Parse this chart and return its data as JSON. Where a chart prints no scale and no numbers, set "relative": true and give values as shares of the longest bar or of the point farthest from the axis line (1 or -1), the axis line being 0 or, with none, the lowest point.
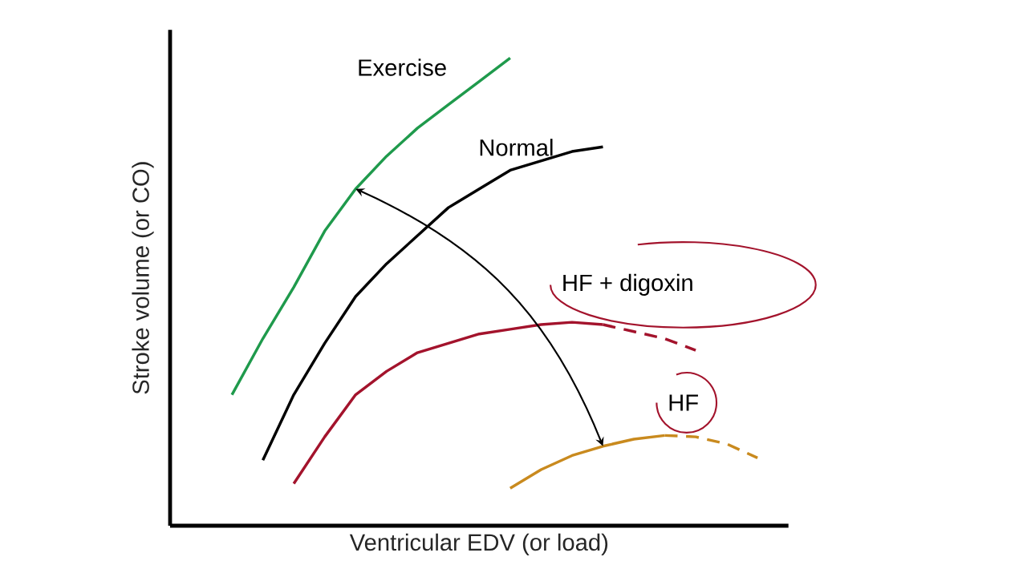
{
  "chart_data": {
    "type": "line",
    "relative": true,
    "xlabel": "Ventricular EDV (or load)",
    "ylabel": "Stroke volume (or CO)",
    "marker": "none",
    "categories": [
      null,
      null,
      null,
      null,
      null,
      null,
      null,
      null,
      null,
      null,
      null,
      null,
      null,
      null,
      null,
      null,
      null,
      null,
      null,
      null,
      null
    ],
    "series": [
      {
        "name": "Exercise",
        "color": "#1f9a4c",
        "values": [
          null,
          null,
          0.28,
          0.4,
          0.51,
          0.63,
          0.72,
          0.79,
          0.85,
          0.9,
          0.95,
          1.0,
          null,
          null,
          null,
          null,
          null,
          null,
          null,
          null,
          null
        ]
      },
      {
        "name": "Normal",
        "color": "#000000",
        "values": [
          null,
          null,
          null,
          0.14,
          0.28,
          0.39,
          0.49,
          0.56,
          0.62,
          0.68,
          0.72,
          0.76,
          0.78,
          0.8,
          0.81,
          null,
          null,
          null,
          null,
          null,
          null
        ]
      },
      {
        "name": "HF + digoxin",
        "color": "#a3132c",
        "line_style": "solid",
        "values": [
          null,
          null,
          null,
          null,
          0.09,
          0.19,
          0.28,
          0.33,
          0.37,
          0.39,
          0.41,
          0.42,
          0.43,
          0.435,
          0.43,
          null,
          null,
          null,
          null,
          null,
          null
        ]
      },
      {
        "color": "#a3132c",
        "line_style": "dashed",
        "values": [
          null,
          null,
          null,
          null,
          null,
          null,
          null,
          null,
          null,
          null,
          null,
          null,
          null,
          null,
          0.43,
          0.415,
          0.4,
          0.375,
          null,
          null,
          null
        ]
      },
      {
        "name": "HF",
        "color": "#c98a1e",
        "line_style": "solid",
        "values": [
          null,
          null,
          null,
          null,
          null,
          null,
          null,
          null,
          null,
          null,
          null,
          0.08,
          0.12,
          0.15,
          0.17,
          0.185,
          0.193,
          null,
          null,
          null,
          null
        ]
      },
      {
        "color": "#c98a1e",
        "line_style": "dashed",
        "values": [
          null,
          null,
          null,
          null,
          null,
          null,
          null,
          null,
          null,
          null,
          null,
          null,
          null,
          null,
          null,
          null,
          0.193,
          0.19,
          0.175,
          0.145,
          null
        ]
      }
    ]
  }
}
